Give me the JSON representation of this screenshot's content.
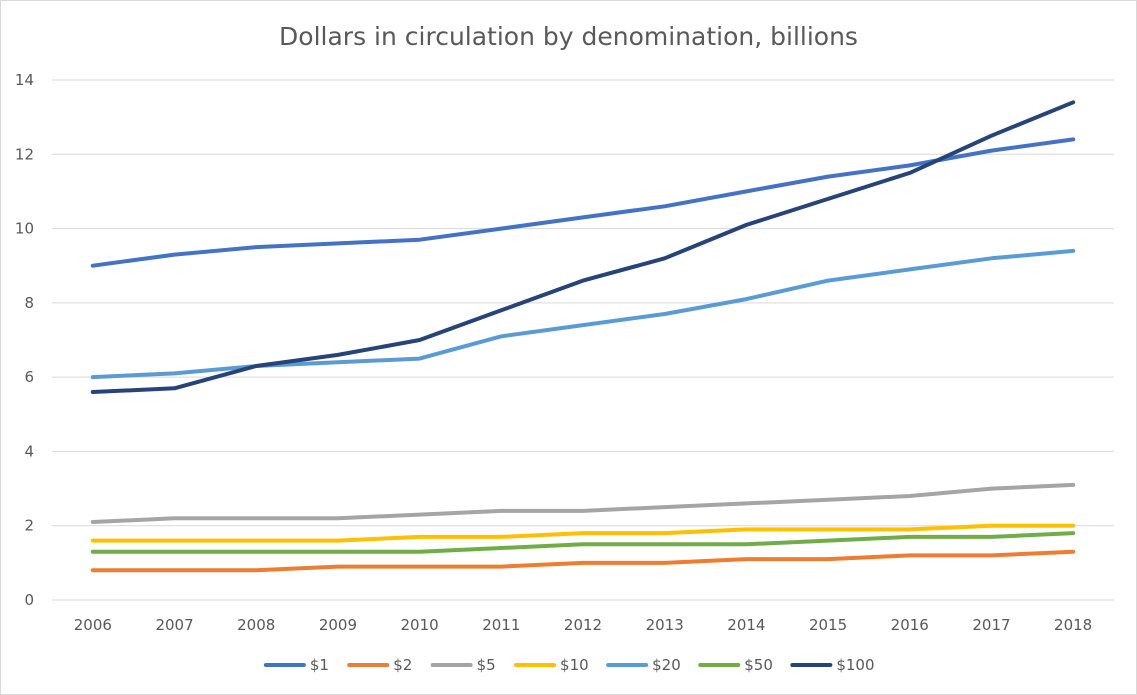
{
  "chart_data": {
    "type": "line",
    "title": "Dollars in circulation by denomination, billions",
    "xlabel": "",
    "ylabel": "",
    "x": [
      "2006",
      "2007",
      "2008",
      "2009",
      "2010",
      "2011",
      "2012",
      "2013",
      "2014",
      "2015",
      "2016",
      "2017",
      "2018"
    ],
    "ylim": [
      0,
      14
    ],
    "yticks": [
      0,
      2,
      4,
      6,
      8,
      10,
      12,
      14
    ],
    "grid": true,
    "legend_position": "bottom",
    "series": [
      {
        "name": "$1",
        "color": "#4472C4",
        "values": [
          9.0,
          9.3,
          9.5,
          9.6,
          9.7,
          10.0,
          10.3,
          10.6,
          11.0,
          11.4,
          11.7,
          12.1,
          12.4
        ]
      },
      {
        "name": "$2",
        "color": "#ED7D31",
        "values": [
          0.8,
          0.8,
          0.8,
          0.9,
          0.9,
          0.9,
          1.0,
          1.0,
          1.1,
          1.1,
          1.2,
          1.2,
          1.3
        ]
      },
      {
        "name": "$5",
        "color": "#A5A5A5",
        "values": [
          2.1,
          2.2,
          2.2,
          2.2,
          2.3,
          2.4,
          2.4,
          2.5,
          2.6,
          2.7,
          2.8,
          3.0,
          3.1
        ]
      },
      {
        "name": "$10",
        "color": "#FFC000",
        "values": [
          1.6,
          1.6,
          1.6,
          1.6,
          1.7,
          1.7,
          1.8,
          1.8,
          1.9,
          1.9,
          1.9,
          2.0,
          2.0
        ]
      },
      {
        "name": "$20",
        "color": "#5B9BD5",
        "values": [
          6.0,
          6.1,
          6.3,
          6.4,
          6.5,
          7.1,
          7.4,
          7.7,
          8.1,
          8.6,
          8.9,
          9.2,
          9.4
        ]
      },
      {
        "name": "$50",
        "color": "#70AD47",
        "values": [
          1.3,
          1.3,
          1.3,
          1.3,
          1.3,
          1.4,
          1.5,
          1.5,
          1.5,
          1.6,
          1.7,
          1.7,
          1.8
        ]
      },
      {
        "name": "$100",
        "color": "#264478",
        "values": [
          5.6,
          5.7,
          6.3,
          6.6,
          7.0,
          7.8,
          8.6,
          9.2,
          10.1,
          10.8,
          11.5,
          12.5,
          13.4
        ]
      }
    ]
  }
}
